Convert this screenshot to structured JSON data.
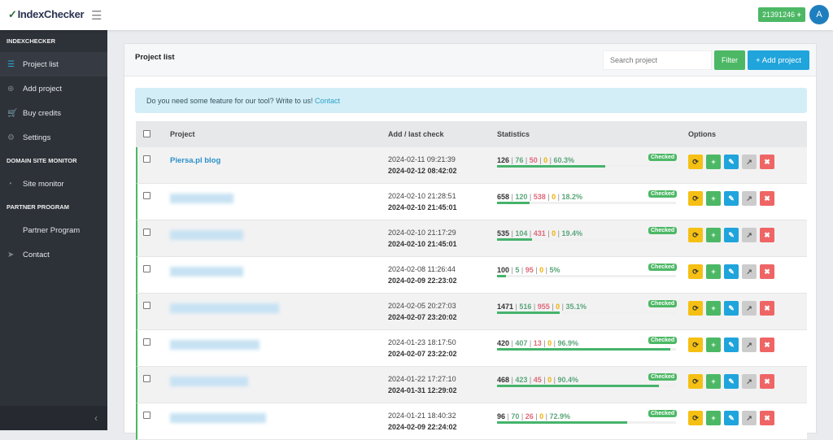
{
  "app": {
    "logo": "IndexChecker",
    "credits": "21391246",
    "credits_icon": "plus-icon",
    "avatar": "A"
  },
  "sidebar": {
    "sections": [
      {
        "title": "INDEXCHECKER",
        "items": [
          {
            "label": "Project list",
            "icon": "☰",
            "active": true
          },
          {
            "label": "Add project",
            "icon": "⊕"
          },
          {
            "label": "Buy credits",
            "icon": "🛒"
          },
          {
            "label": "Settings",
            "icon": "⚙"
          }
        ]
      },
      {
        "title": "DOMAIN SITE MONITOR",
        "items": [
          {
            "label": "Site monitor",
            "icon": "◔"
          }
        ]
      },
      {
        "title": "PARTNER PROGRAM",
        "items": [
          {
            "label": "Partner Program",
            "icon": ""
          },
          {
            "label": "Contact",
            "icon": "➤"
          }
        ]
      }
    ],
    "collapse": "‹"
  },
  "main": {
    "title": "Project list",
    "search_placeholder": "Search project",
    "filter_label": "Filter",
    "add_label": "+ Add project",
    "alert_text": "Do you need some feature for our tool? Write to us! ",
    "alert_link": "Contact",
    "columns": {
      "project": "Project",
      "date": "Add / last check",
      "stats": "Statistics",
      "options": "Options"
    },
    "rows": [
      {
        "name": "Piersa.pl blog",
        "added": "2024-02-11 09:21:39",
        "checked": "2024-02-12 08:42:02",
        "total": 126,
        "indexed": 76,
        "not_indexed": 50,
        "pending": 0,
        "percent": 60.3,
        "status": "Checked"
      },
      {
        "name": null,
        "added": "2024-02-10 21:28:51",
        "checked": "2024-02-10 21:45:01",
        "total": 658,
        "indexed": 120,
        "not_indexed": 538,
        "pending": 0,
        "percent": 18.2,
        "status": "Checked"
      },
      {
        "name": null,
        "added": "2024-02-10 21:17:29",
        "checked": "2024-02-10 21:45:01",
        "total": 535,
        "indexed": 104,
        "not_indexed": 431,
        "pending": 0,
        "percent": 19.4,
        "status": "Checked"
      },
      {
        "name": null,
        "added": "2024-02-08 11:26:44",
        "checked": "2024-02-09 22:23:02",
        "total": 100,
        "indexed": 5,
        "not_indexed": 95,
        "pending": 0,
        "percent": 5,
        "status": "Checked"
      },
      {
        "name": null,
        "added": "2024-02-05 20:27:03",
        "checked": "2024-02-07 23:20:02",
        "total": 1471,
        "indexed": 516,
        "not_indexed": 955,
        "pending": 0,
        "percent": 35.1,
        "status": "Checked"
      },
      {
        "name": null,
        "added": "2024-01-23 18:17:50",
        "checked": "2024-02-07 23:22:02",
        "total": 420,
        "indexed": 407,
        "not_indexed": 13,
        "pending": 0,
        "percent": 96.9,
        "status": "Checked"
      },
      {
        "name": null,
        "added": "2024-01-22 17:27:10",
        "checked": "2024-01-31 12:29:02",
        "total": 468,
        "indexed": 423,
        "not_indexed": 45,
        "pending": 0,
        "percent": 90.4,
        "status": "Checked"
      },
      {
        "name": null,
        "added": "2024-01-21 18:40:32",
        "checked": "2024-02-09 22:24:02",
        "total": 96,
        "indexed": 70,
        "not_indexed": 26,
        "pending": 0,
        "percent": 72.9,
        "status": "Checked"
      }
    ]
  }
}
